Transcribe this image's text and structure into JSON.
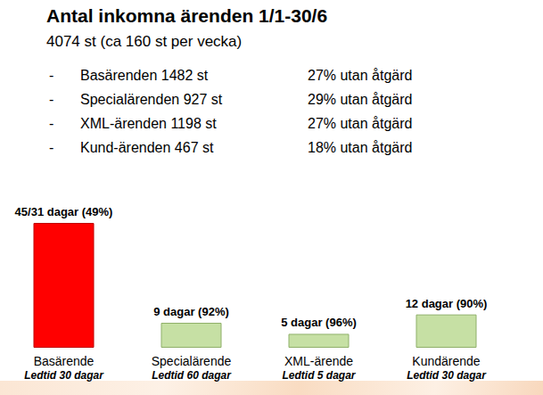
{
  "header": {
    "title": "Antal inkomna ärenden 1/1-30/6",
    "summary": "4074 st (ca 160 st per vecka)",
    "items": [
      {
        "label": "Basärenden 1482 st",
        "note": "27% utan åtgärd"
      },
      {
        "label": "Specialärenden 927 st",
        "note": "29% utan åtgärd"
      },
      {
        "label": "XML-ärenden 1198 st",
        "note": "27% utan åtgärd"
      },
      {
        "label": "Kund-ärenden 467 st",
        "note": "18% utan åtgärd"
      }
    ]
  },
  "chart_data": {
    "type": "bar",
    "categories": [
      "Basärende",
      "Specialärende",
      "XML-ärende",
      "Kundärende"
    ],
    "lead_times": [
      "Ledtid 30 dagar",
      "Ledtid 60 dagar",
      "Ledtid 5 dagar",
      "Ledtid 30 dagar"
    ],
    "values": [
      45,
      9,
      5,
      12
    ],
    "value_labels": [
      "45/31 dagar (49%)",
      "9 dagar (92%)",
      "5 dagar (96%)",
      "12 dagar (90%)"
    ],
    "colors": [
      "#ff0000",
      "#c6e0a4",
      "#c6e0a4",
      "#c6e0a4"
    ],
    "ylim": [
      0,
      45
    ],
    "grid": false,
    "data_labels": true,
    "tick_labels": "x"
  }
}
